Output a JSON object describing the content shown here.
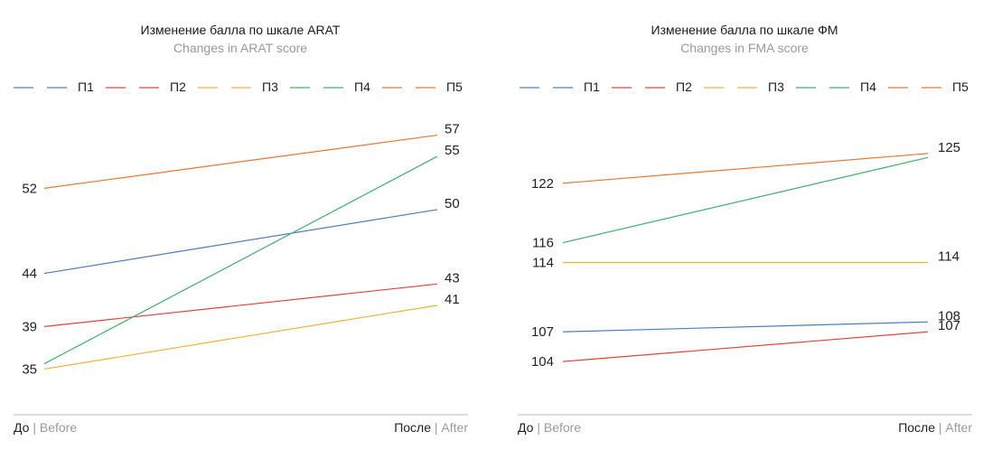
{
  "chart_data": [
    {
      "type": "line",
      "title": "Изменение балла по шкале ARAT",
      "subtitle": "Changes in ARAT score",
      "categories": [
        "До | Before",
        "После | After"
      ],
      "x_left": {
        "main": "До",
        "sep": "|",
        "sub": "Before"
      },
      "x_right": {
        "main": "После",
        "sep": "|",
        "sub": "After"
      },
      "ylim": [
        33,
        59
      ],
      "grid": false,
      "legend_position": "top",
      "series": [
        {
          "name": "П1",
          "color": "#4a7fc0",
          "values": [
            44,
            50
          ],
          "show_labels": [
            true,
            true
          ]
        },
        {
          "name": "П2",
          "color": "#e8423a",
          "values": [
            39,
            43
          ],
          "show_labels": [
            true,
            true
          ]
        },
        {
          "name": "П3",
          "color": "#f2b233",
          "values": [
            35,
            41
          ],
          "show_labels": [
            true,
            true
          ]
        },
        {
          "name": "П4",
          "color": "#3db36b",
          "values": [
            35.5,
            55
          ],
          "show_labels": [
            false,
            true
          ]
        },
        {
          "name": "П5",
          "color": "#ef7530",
          "values": [
            52,
            57
          ],
          "show_labels": [
            true,
            true
          ]
        }
      ]
    },
    {
      "type": "line",
      "title": "Изменение балла по шкале ФМ",
      "subtitle": "Changes in FMA score",
      "categories": [
        "До | Before",
        "После | After"
      ],
      "x_left": {
        "main": "До",
        "sep": "|",
        "sub": "Before"
      },
      "x_right": {
        "main": "После",
        "sep": "|",
        "sub": "After"
      },
      "ylim": [
        101,
        128
      ],
      "grid": false,
      "legend_position": "top",
      "series": [
        {
          "name": "П1",
          "color": "#4a7fc0",
          "values": [
            107,
            108
          ],
          "show_labels": [
            true,
            true
          ]
        },
        {
          "name": "П2",
          "color": "#e8423a",
          "values": [
            104,
            107
          ],
          "show_labels": [
            true,
            true
          ]
        },
        {
          "name": "П3",
          "color": "#f2b233",
          "values": [
            114,
            114
          ],
          "show_labels": [
            true,
            true
          ]
        },
        {
          "name": "П4",
          "color": "#3db36b",
          "values": [
            116,
            124.6
          ],
          "show_labels": [
            true,
            false
          ]
        },
        {
          "name": "П5",
          "color": "#ef7530",
          "values": [
            122,
            125
          ],
          "show_labels": [
            true,
            true
          ]
        }
      ]
    }
  ]
}
